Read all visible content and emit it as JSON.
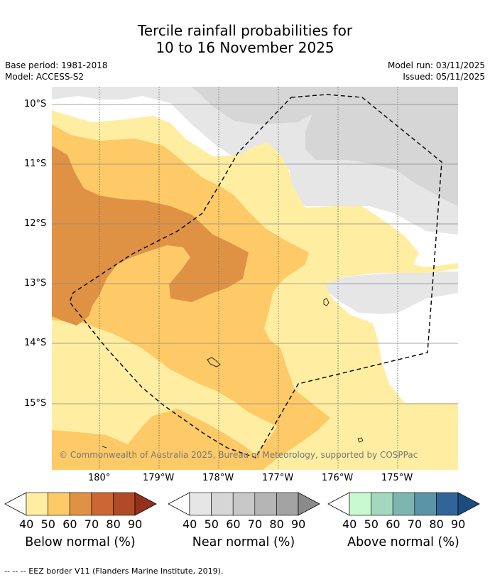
{
  "title_line1": "Tercile rainfall probabilities for",
  "title_line2": "10 to 16 November 2025",
  "base_period": "Base period: 1981-2018",
  "model": "Model: ACCESS-S2",
  "model_run": "Model run: 03/11/2025",
  "issued": "Issued: 05/11/2025",
  "lat_ticks": [
    "10°S",
    "11°S",
    "12°S",
    "13°S",
    "14°S",
    "15°S"
  ],
  "lon_ticks": [
    "180°",
    "179°W",
    "178°W",
    "177°W",
    "176°W",
    "175°W"
  ],
  "copyright": "© Commonwealth of Australia 2025, Bureau of Meteorology, supported by COSPPac",
  "colorbars": [
    {
      "label": "Below normal (%)",
      "ticks": [
        "40",
        "50",
        "60",
        "70",
        "80",
        "90"
      ],
      "colors": [
        "#ffeea1",
        "#fdca67",
        "#e09244",
        "#cc6633",
        "#b04a27",
        "#94301c"
      ]
    },
    {
      "label": "Near normal (%)",
      "ticks": [
        "40",
        "50",
        "60",
        "70",
        "80",
        "90"
      ],
      "colors": [
        "#e6e6e6",
        "#d6d6d6",
        "#c8c8c8",
        "#b5b5b5",
        "#a3a3a3",
        "#8a8a8a"
      ]
    },
    {
      "label": "Above normal (%)",
      "ticks": [
        "40",
        "50",
        "60",
        "70",
        "80",
        "90"
      ],
      "colors": [
        "#c9f9cf",
        "#a3d8bf",
        "#7db5b0",
        "#5a94a6",
        "#316599",
        "#1a4d80"
      ]
    }
  ],
  "footnote": "--  --  -- EEZ border V11 (Flanders Marine Institute, 2019)."
}
